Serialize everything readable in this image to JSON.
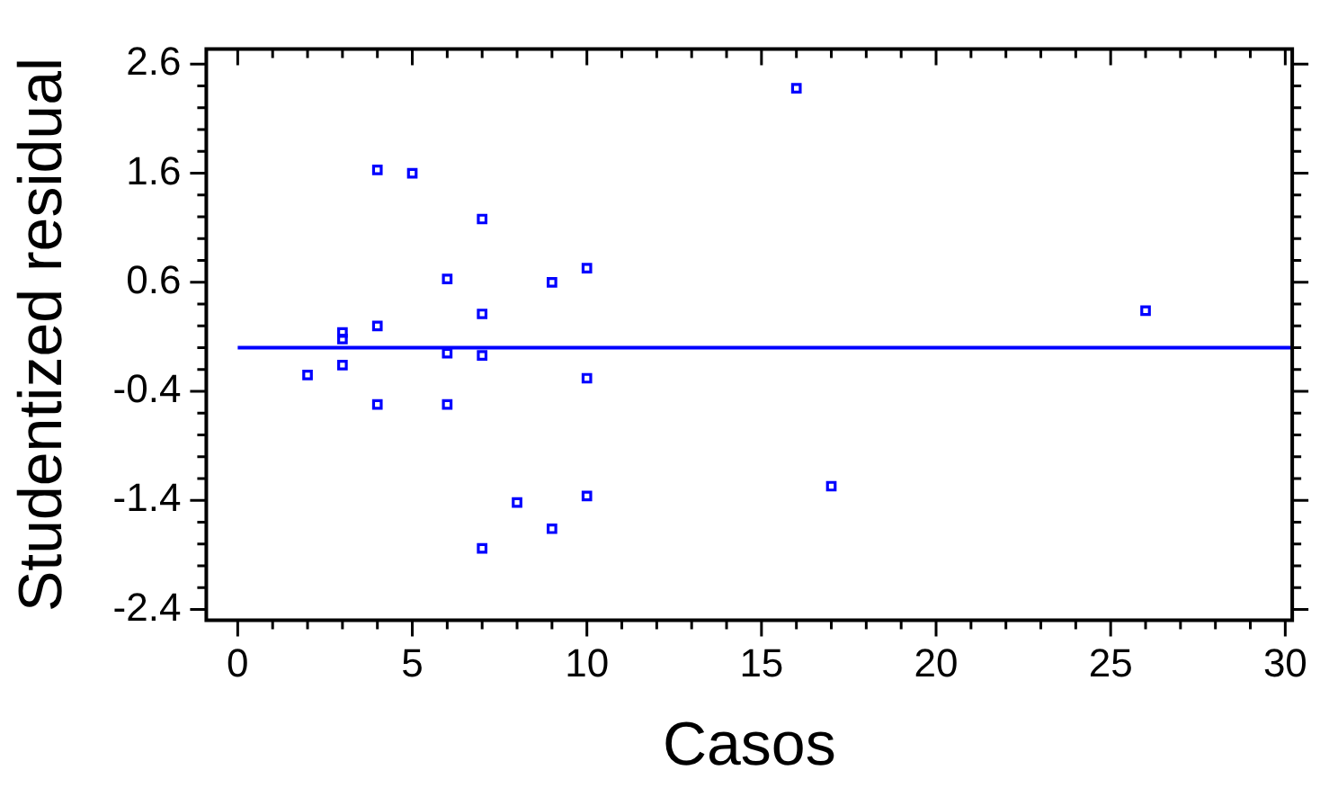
{
  "chart_data": {
    "type": "scatter",
    "xlabel": "Casos",
    "ylabel": "Studentized residual",
    "x": [
      4,
      5,
      7,
      6,
      9,
      10,
      7,
      4,
      3,
      3,
      6,
      7,
      2,
      3,
      10,
      4,
      6,
      8,
      10,
      9,
      7,
      16,
      26,
      17
    ],
    "series": [
      {
        "color": "#0000ff",
        "values": [
          1.63,
          1.6,
          1.18,
          0.63,
          0.6,
          0.73,
          0.31,
          0.2,
          0.14,
          0.08,
          -0.05,
          -0.07,
          -0.25,
          -0.16,
          -0.28,
          -0.52,
          -0.52,
          -1.42,
          -1.36,
          -1.66,
          -1.84,
          2.38,
          0.34,
          -1.27
        ]
      }
    ],
    "marker": "square",
    "xlim": [
      -0.9,
      30.2
    ],
    "ylim": [
      -2.5,
      2.74
    ],
    "xticks": [
      0,
      5,
      10,
      15,
      20,
      25,
      30
    ],
    "yticks": [
      2.6,
      1.6,
      0.6,
      -0.4,
      -1.4,
      -2.4
    ],
    "ref_lines": [
      {
        "axis": "y",
        "value": 0,
        "color": "#0000ff",
        "line_style": "solid"
      }
    ],
    "grid": false,
    "legend": false
  }
}
